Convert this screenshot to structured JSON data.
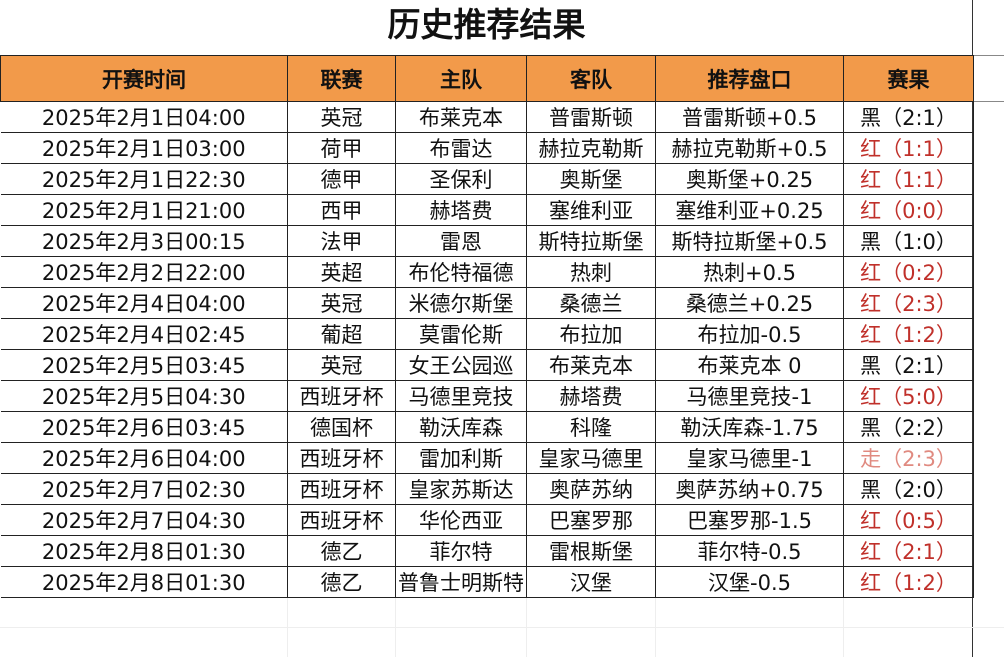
{
  "title": "历史推荐结果",
  "headers": [
    "开赛时间",
    "联赛",
    "主队",
    "客队",
    "推荐盘口",
    "赛果"
  ],
  "colors": {
    "header_bg": "#f29a4a",
    "win": "#c0302a",
    "push": "#e08a80",
    "loss": "#111111"
  },
  "rows": [
    {
      "time": "2025年2月1日04:00",
      "league": "英冠",
      "home": "布莱克本",
      "away": "普雷斯顿",
      "pick": "普雷斯顿+0.5",
      "mark": "黑",
      "score": "（2:1）",
      "type": "black"
    },
    {
      "time": "2025年2月1日03:00",
      "league": "荷甲",
      "home": "布雷达",
      "away": "赫拉克勒斯",
      "pick": "赫拉克勒斯+0.5",
      "mark": "红",
      "score": "（1:1）",
      "type": "red"
    },
    {
      "time": "2025年2月1日22:30",
      "league": "德甲",
      "home": "圣保利",
      "away": "奥斯堡",
      "pick": "奥斯堡+0.25",
      "mark": "红",
      "score": "（1:1）",
      "type": "red"
    },
    {
      "time": "2025年2月1日21:00",
      "league": "西甲",
      "home": "赫塔费",
      "away": "塞维利亚",
      "pick": "塞维利亚+0.25",
      "mark": "红",
      "score": "（0:0）",
      "type": "red"
    },
    {
      "time": "2025年2月3日00:15",
      "league": "法甲",
      "home": "雷恩",
      "away": "斯特拉斯堡",
      "pick": "斯特拉斯堡+0.5",
      "mark": "黑",
      "score": "（1:0）",
      "type": "black"
    },
    {
      "time": "2025年2月2日22:00",
      "league": "英超",
      "home": "布伦特福德",
      "away": "热刺",
      "pick": "热刺+0.5",
      "mark": "红",
      "score": "（0:2）",
      "type": "red"
    },
    {
      "time": "2025年2月4日04:00",
      "league": "英冠",
      "home": "米德尔斯堡",
      "away": "桑德兰",
      "pick": "桑德兰+0.25",
      "mark": "红",
      "score": "（2:3）",
      "type": "red"
    },
    {
      "time": "2025年2月4日02:45",
      "league": "葡超",
      "home": "莫雷伦斯",
      "away": "布拉加",
      "pick": "布拉加-0.5",
      "mark": "红",
      "score": "（1:2）",
      "type": "red"
    },
    {
      "time": "2025年2月5日03:45",
      "league": "英冠",
      "home": "女王公园巡",
      "away": "布莱克本",
      "pick": "布莱克本 0",
      "mark": "黑",
      "score": "（2:1）",
      "type": "black"
    },
    {
      "time": "2025年2月5日04:30",
      "league": "西班牙杯",
      "home": "马德里竞技",
      "away": "赫塔费",
      "pick": "马德里竞技-1",
      "mark": "红",
      "score": "（5:0）",
      "type": "red"
    },
    {
      "time": "2025年2月6日03:45",
      "league": "德国杯",
      "home": "勒沃库森",
      "away": "科隆",
      "pick": "勒沃库森-1.75",
      "mark": "黑",
      "score": "（2:2）",
      "type": "black"
    },
    {
      "time": "2025年2月6日04:00",
      "league": "西班牙杯",
      "home": "雷加利斯",
      "away": "皇家马德里",
      "pick": "皇家马德里-1",
      "mark": "走",
      "score": "（2:3）",
      "type": "push"
    },
    {
      "time": "2025年2月7日02:30",
      "league": "西班牙杯",
      "home": "皇家苏斯达",
      "away": "奥萨苏纳",
      "pick": "奥萨苏纳+0.75",
      "mark": "黑",
      "score": "（2:0）",
      "type": "black"
    },
    {
      "time": "2025年2月7日04:30",
      "league": "西班牙杯",
      "home": "华伦西亚",
      "away": "巴塞罗那",
      "pick": "巴塞罗那-1.5",
      "mark": "红",
      "score": "（0:5）",
      "type": "red"
    },
    {
      "time": "2025年2月8日01:30",
      "league": "德乙",
      "home": "菲尔特",
      "away": "雷根斯堡",
      "pick": "菲尔特-0.5",
      "mark": "红",
      "score": "（2:1）",
      "type": "red"
    },
    {
      "time": "2025年2月8日01:30",
      "league": "德乙",
      "home": "普鲁士明斯特",
      "away": "汉堡",
      "pick": "汉堡-0.5",
      "mark": "红",
      "score": "（1:2）",
      "type": "red"
    }
  ]
}
